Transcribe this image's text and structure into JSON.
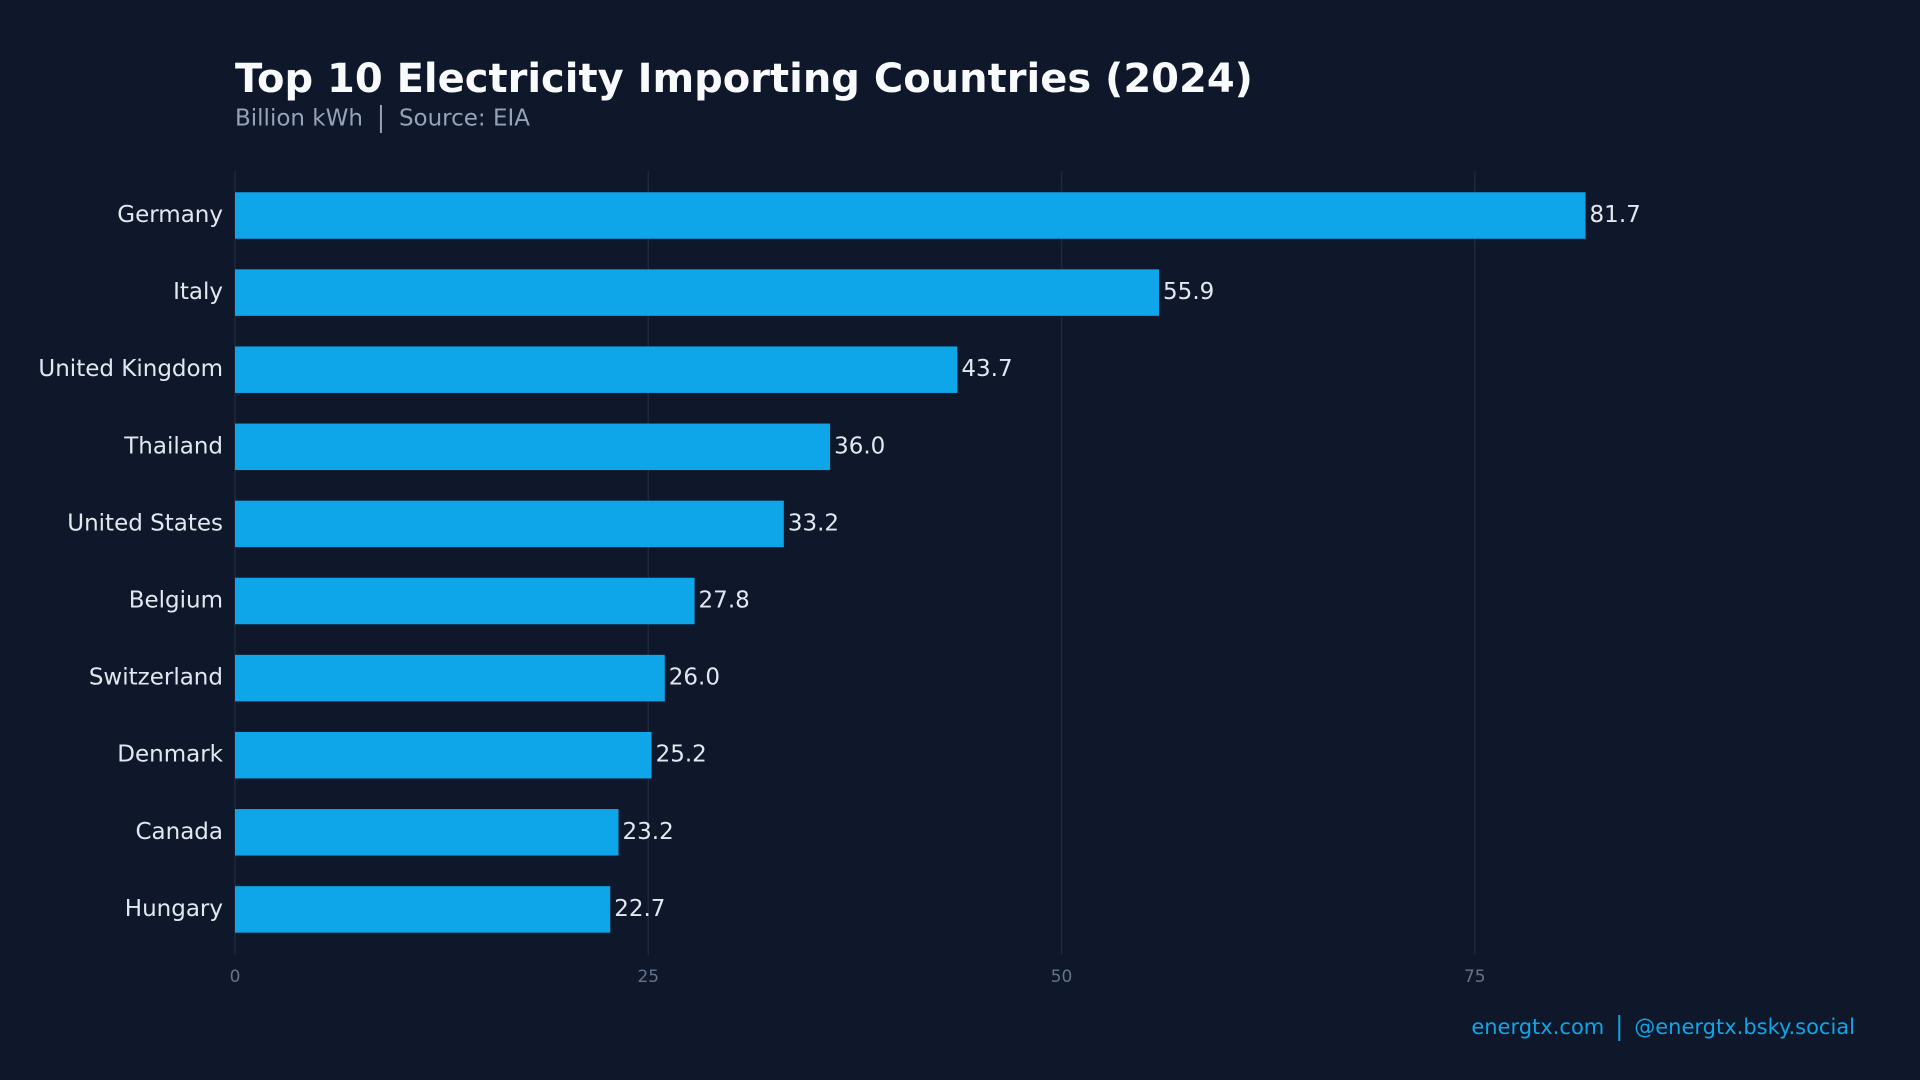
{
  "chart_data": {
    "type": "bar",
    "orientation": "horizontal",
    "title": "Top 10 Electricity Importing Countries (2024)",
    "subtitle": {
      "unit": "Billion kWh",
      "source": "Source: EIA"
    },
    "categories": [
      "Germany",
      "Italy",
      "United Kingdom",
      "Thailand",
      "United States",
      "Belgium",
      "Switzerland",
      "Denmark",
      "Canada",
      "Hungary"
    ],
    "values": [
      81.7,
      55.9,
      43.7,
      36.0,
      33.2,
      27.8,
      26.0,
      25.2,
      23.2,
      22.7
    ],
    "value_labels": [
      "81.7",
      "55.9",
      "43.7",
      "36.0",
      "33.2",
      "27.8",
      "26.0",
      "25.2",
      "23.2",
      "22.7"
    ],
    "color": "#0ea5e9",
    "xlim": [
      0,
      98
    ],
    "xticks": [
      0,
      25,
      50,
      75
    ],
    "grid": true,
    "footer": {
      "site": "energtx.com",
      "handle": "@energtx.bsky.social"
    }
  }
}
